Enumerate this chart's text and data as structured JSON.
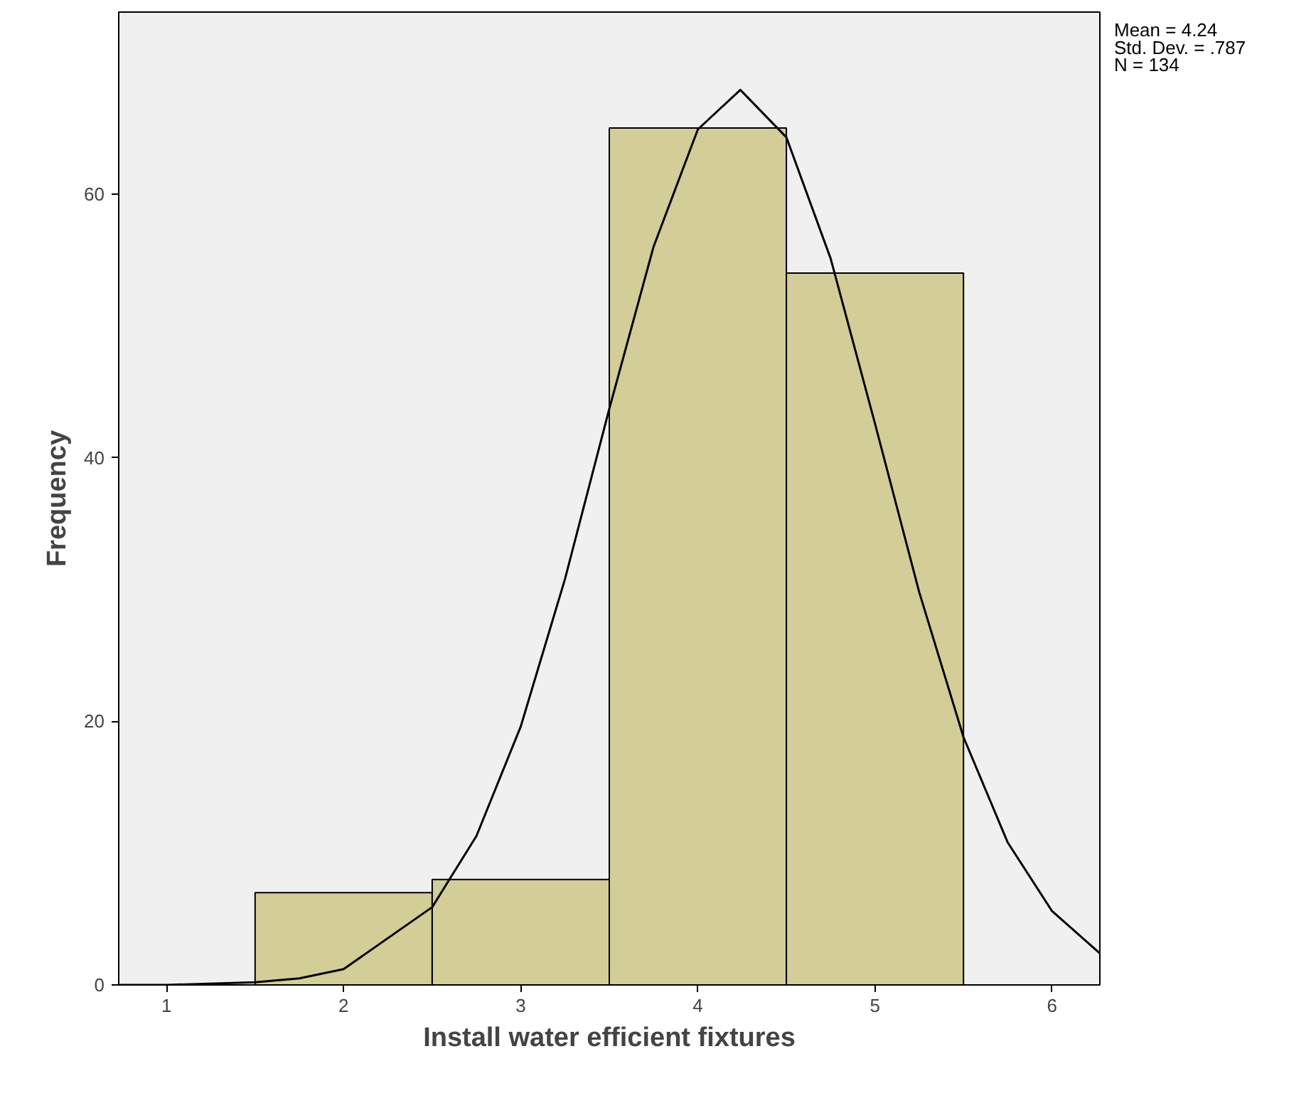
{
  "chart_data": {
    "type": "histogram",
    "xlabel": "Install water efficient fixtures",
    "ylabel": "Frequency",
    "annotations": [
      "Mean = 4.24",
      "Std. Dev. = .787",
      "N = 134"
    ],
    "xlim": [
      0.73,
      6.27
    ],
    "ylim": [
      0,
      73.8
    ],
    "xticks": [
      1,
      2,
      3,
      4,
      5,
      6
    ],
    "yticks": [
      0,
      20,
      40,
      60
    ],
    "grid": false,
    "series": [
      {
        "type": "histogram",
        "color": "#d3ce97",
        "bins": [
          1.5,
          2.5,
          3.5,
          4.5,
          5.5
        ],
        "values": [
          7,
          8,
          65,
          54
        ]
      },
      {
        "type": "line",
        "color": "#000000",
        "x": [
          0.73,
          1,
          1.5,
          1.75,
          2,
          2.5,
          2.75,
          3,
          3.25,
          3.5,
          3.75,
          4,
          4.24,
          4.5,
          4.75,
          5,
          5.25,
          5.5,
          5.75,
          6,
          6.27
        ],
        "values": [
          0,
          0,
          0.2,
          0.5,
          1.2,
          5.9,
          11.3,
          19.6,
          30.8,
          43.7,
          56.0,
          64.9,
          67.9,
          64.3,
          55.1,
          42.6,
          29.8,
          18.8,
          10.8,
          5.6,
          2.4
        ]
      }
    ]
  }
}
